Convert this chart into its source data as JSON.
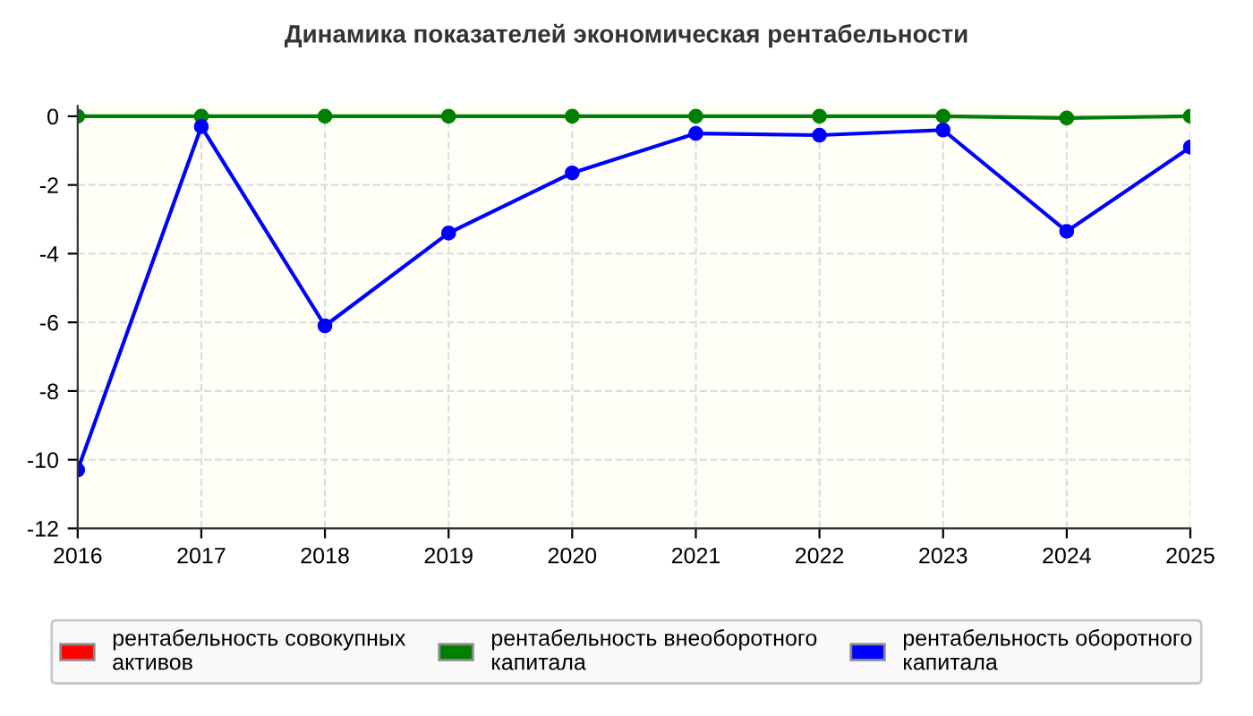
{
  "chart_data": {
    "type": "line",
    "title": "Динамика показателей экономическая рентабельности",
    "x": [
      2016,
      2017,
      2018,
      2019,
      2020,
      2021,
      2022,
      2023,
      2024,
      2025
    ],
    "series": [
      {
        "name": "рентабельность совокупных активов",
        "color": "#ff0000",
        "values": [
          null,
          null,
          null,
          null,
          null,
          null,
          null,
          null,
          null,
          null
        ]
      },
      {
        "name": "рентабельность внеоборотного капитала",
        "color": "#008000",
        "values": [
          0,
          0,
          0,
          0,
          0,
          0,
          0,
          0,
          -0.05,
          0
        ]
      },
      {
        "name": "рентабельность оборотного капитала",
        "color": "#0000ff",
        "values": [
          -10.3,
          -0.3,
          -6.1,
          -3.4,
          -1.65,
          -0.5,
          -0.55,
          -0.4,
          -3.35,
          -0.9
        ]
      }
    ],
    "xlim": [
      2016,
      2025
    ],
    "xticks": [
      2016,
      2017,
      2018,
      2019,
      2020,
      2021,
      2022,
      2023,
      2024,
      2025
    ],
    "ylim": [
      -12,
      0.3
    ],
    "yticks": [
      -12,
      -10,
      -8,
      -6,
      -4,
      -2,
      0
    ],
    "grid": true,
    "legend": "bottom",
    "marker": "circle",
    "line_style": "solid"
  }
}
